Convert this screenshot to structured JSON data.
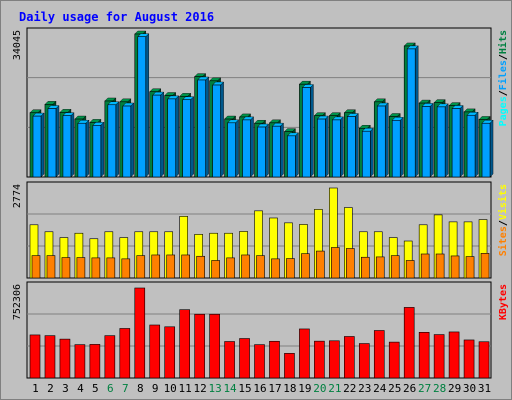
{
  "colors": {
    "background": "#c0c0c0",
    "title": "#0000ff",
    "axis_text": "#000000",
    "weekend_label": "#008040",
    "hits": "#008040",
    "files": "#00a0ff",
    "pages": "#00ffff",
    "visits": "#ffff00",
    "sites": "#ff8000",
    "kbytes": "#ff0000",
    "slash": "#000000",
    "gridline": "#808080"
  },
  "chart_data": {
    "type": "bar",
    "title": "Daily usage for August 2016",
    "categories": [
      "1",
      "2",
      "3",
      "4",
      "5",
      "6",
      "7",
      "8",
      "9",
      "10",
      "11",
      "12",
      "13",
      "14",
      "15",
      "16",
      "17",
      "18",
      "19",
      "20",
      "21",
      "22",
      "23",
      "24",
      "25",
      "26",
      "27",
      "28",
      "29",
      "30",
      "31"
    ],
    "weekend_days": [
      "6",
      "7",
      "13",
      "14",
      "20",
      "21",
      "27",
      "28"
    ],
    "panels": [
      {
        "id": "hits",
        "ymax_label": "34045",
        "ymax": 34045,
        "legend": [
          {
            "text": "Pages",
            "color": "#00ffff"
          },
          {
            "text": "/",
            "color": "#000000"
          },
          {
            "text": "Files",
            "color": "#00a0ff"
          },
          {
            "text": "/",
            "color": "#000000"
          },
          {
            "text": "Hits",
            "color": "#008040"
          }
        ],
        "series": [
          {
            "name": "Hits",
            "color": "#008040",
            "values": [
              15300,
              17300,
              15400,
              13800,
              13000,
              18100,
              17900,
              34045,
              20300,
              19400,
              19200,
              23900,
              22900,
              13800,
              14300,
              12800,
              12900,
              10800,
              22100,
              14600,
              14600,
              15300,
              11600,
              17900,
              14400,
              31200,
              17600,
              17700,
              17000,
              15500,
              13700
            ]
          },
          {
            "name": "Files",
            "color": "#00a0ff",
            "values": [
              14500,
              16300,
              14600,
              12800,
              12300,
              17200,
              16900,
              33400,
              19500,
              18600,
              18400,
              23100,
              21900,
              12900,
              13600,
              11900,
              12100,
              9800,
              21300,
              13800,
              13600,
              14400,
              10900,
              16900,
              13500,
              30500,
              16800,
              16700,
              16300,
              14700,
              12800
            ]
          },
          {
            "name": "Pages",
            "color": "#00ffff",
            "values": [
              14500,
              16300,
              14600,
              12800,
              12300,
              17200,
              16900,
              33400,
              19500,
              18600,
              18400,
              23100,
              21900,
              12900,
              13600,
              11900,
              12100,
              9800,
              21300,
              13800,
              13600,
              14400,
              10900,
              16900,
              13500,
              30500,
              16800,
              16700,
              16300,
              14700,
              12800
            ]
          }
        ]
      },
      {
        "id": "visits",
        "ymax_label": "2774",
        "ymax": 2774,
        "legend": [
          {
            "text": "Sites",
            "color": "#ff8000"
          },
          {
            "text": "/",
            "color": "#000000"
          },
          {
            "text": "Visits",
            "color": "#ffff00"
          }
        ],
        "series": [
          {
            "name": "Visits",
            "color": "#ffff00",
            "values": [
              1640,
              1425,
              1245,
              1380,
              1210,
              1425,
              1245,
              1425,
              1425,
              1425,
              1900,
              1345,
              1380,
              1380,
              1435,
              2070,
              1850,
              1700,
              1650,
              2115,
              2774,
              2170,
              1425,
              1425,
              1245,
              1140,
              1640,
              1945,
              1730,
              1730,
              1800
            ]
          },
          {
            "name": "Sites",
            "color": "#ff8000",
            "values": [
              690,
              690,
              630,
              630,
              620,
              620,
              590,
              690,
              710,
              710,
              710,
              670,
              540,
              620,
              710,
              690,
              590,
              600,
              750,
              830,
              940,
              910,
              640,
              650,
              690,
              540,
              740,
              740,
              680,
              660,
              760
            ]
          }
        ]
      },
      {
        "id": "kbytes",
        "ymax_label": "752306",
        "ymax": 752306,
        "legend": [
          {
            "text": "KBytes",
            "color": "#ff0000"
          }
        ],
        "series": [
          {
            "name": "KBytes",
            "color": "#ff0000",
            "values": [
              360000,
              354000,
              325000,
              279000,
              281000,
              354000,
              414000,
              752306,
              443000,
              428000,
              571000,
              533000,
              533000,
              305000,
              330000,
              279000,
              307000,
              206000,
              410000,
              308000,
              311000,
              347000,
              288000,
              397000,
              300000,
              590000,
              382000,
              363000,
              385000,
              318000,
              303000
            ]
          }
        ]
      }
    ]
  }
}
